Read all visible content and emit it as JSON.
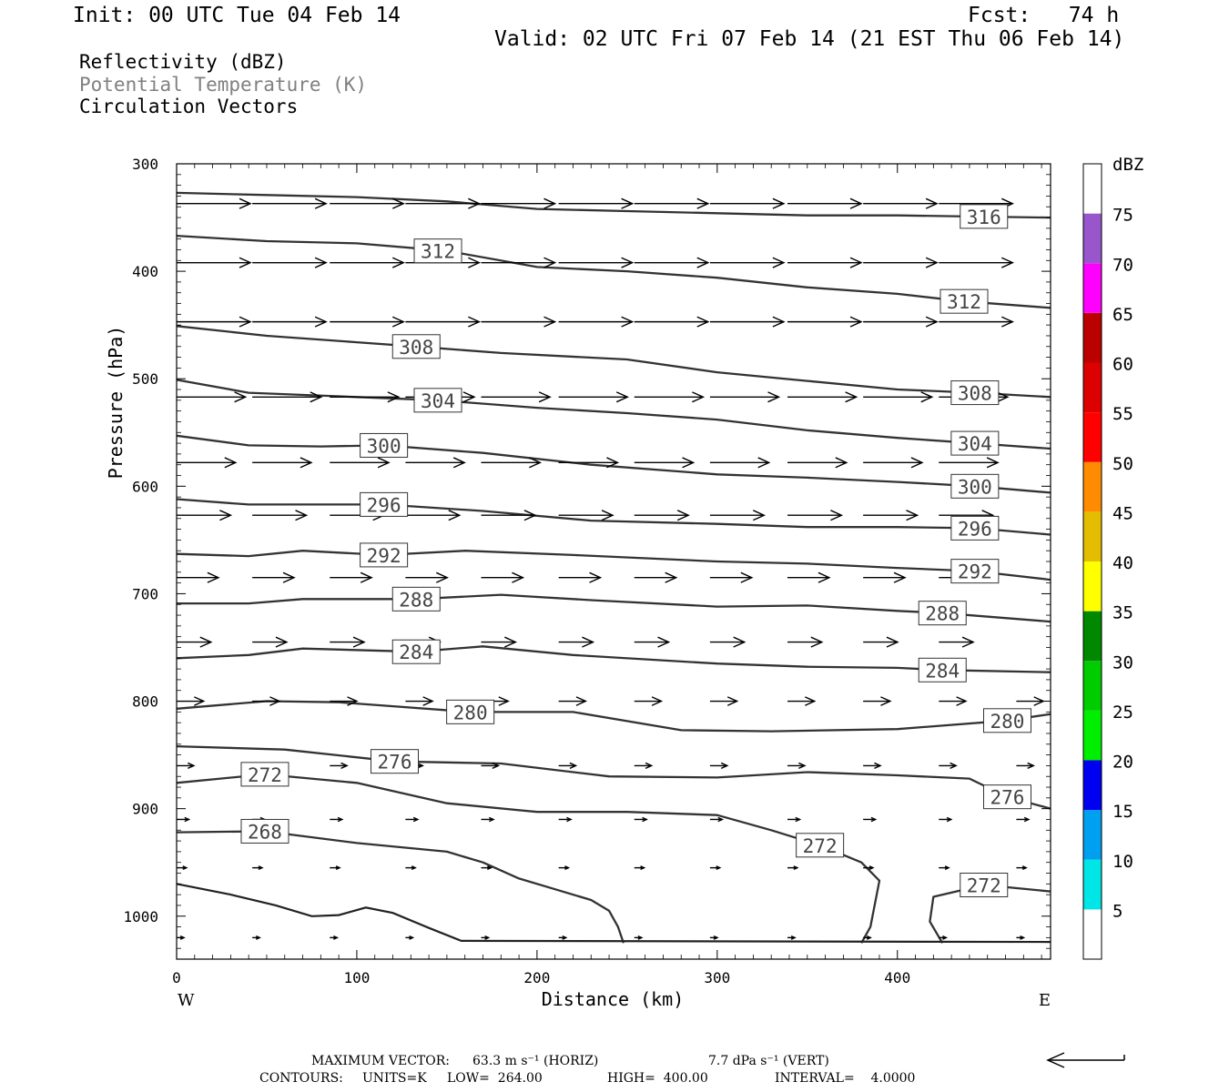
{
  "header": {
    "init": "Init: 00 UTC Tue 04 Feb 14",
    "fcst": "Fcst:   74 h",
    "valid": "Valid: 02 UTC Fri 07 Feb 14 (21 EST Thu 06 Feb 14)"
  },
  "legend": {
    "line1": "Reflectivity (dBZ)",
    "line2": "Potential Temperature (K)",
    "line3": "Circulation Vectors",
    "line2_color": "#808080"
  },
  "footer": {
    "max_vector_label": "MAXIMUM VECTOR:",
    "max_vector_horiz": "63.3 m s⁻¹ (HORIZ)",
    "max_vector_vert": "7.7 dPa s⁻¹ (VERT)",
    "contours_label": "CONTOURS:",
    "units": "UNITS=K",
    "low": "LOW=  264.00",
    "high": "HIGH=  400.00",
    "interval": "INTERVAL=    4.0000"
  },
  "chart_data": {
    "type": "line",
    "xlabel": "Distance (km)",
    "ylabel": "Pressure (hPa)",
    "xlim": [
      0,
      485
    ],
    "ylim": [
      1040,
      300
    ],
    "x_ticks": [
      0,
      100,
      200,
      300,
      400
    ],
    "y_ticks": [
      300,
      400,
      500,
      600,
      700,
      800,
      900,
      1000
    ],
    "x_left_end_label": "W",
    "x_right_end_label": "E",
    "colorbar": {
      "title": "dBZ",
      "levels": [
        5,
        10,
        15,
        20,
        25,
        30,
        35,
        40,
        45,
        50,
        55,
        60,
        65,
        70,
        75
      ],
      "colors": [
        "#ffffff",
        "#00e5e5",
        "#00a0f0",
        "#0000f0",
        "#00ee00",
        "#00cc00",
        "#008800",
        "#ffff00",
        "#e5bd00",
        "#ff8c00",
        "#ff0000",
        "#dd0000",
        "#bb0000",
        "#ff00ff",
        "#9955cc",
        "#ffffff"
      ]
    },
    "isentropes": [
      {
        "theta": "316",
        "labels": [
          [
            448,
            349
          ]
        ],
        "points": [
          [
            0,
            327
          ],
          [
            50,
            329
          ],
          [
            100,
            331
          ],
          [
            150,
            335
          ],
          [
            200,
            342
          ],
          [
            250,
            344
          ],
          [
            300,
            346
          ],
          [
            350,
            348
          ],
          [
            400,
            348
          ],
          [
            440,
            349
          ],
          [
            485,
            350
          ]
        ]
      },
      {
        "theta": "312",
        "labels": [
          [
            145,
            381
          ],
          [
            437,
            428
          ]
        ],
        "points": [
          [
            0,
            367
          ],
          [
            50,
            372
          ],
          [
            100,
            374
          ],
          [
            150,
            381
          ],
          [
            200,
            396
          ],
          [
            250,
            400
          ],
          [
            300,
            406
          ],
          [
            350,
            415
          ],
          [
            400,
            421
          ],
          [
            437,
            428
          ],
          [
            485,
            434
          ]
        ]
      },
      {
        "theta": "308",
        "labels": [
          [
            133,
            470
          ],
          [
            443,
            513
          ]
        ],
        "points": [
          [
            0,
            451
          ],
          [
            50,
            460
          ],
          [
            100,
            466
          ],
          [
            133,
            470
          ],
          [
            180,
            476
          ],
          [
            250,
            482
          ],
          [
            300,
            494
          ],
          [
            350,
            502
          ],
          [
            400,
            510
          ],
          [
            443,
            513
          ],
          [
            485,
            517
          ]
        ]
      },
      {
        "theta": "304",
        "labels": [
          [
            145,
            520
          ],
          [
            443,
            560
          ]
        ],
        "points": [
          [
            0,
            501
          ],
          [
            40,
            513
          ],
          [
            100,
            517
          ],
          [
            145,
            520
          ],
          [
            200,
            527
          ],
          [
            250,
            532
          ],
          [
            300,
            538
          ],
          [
            350,
            548
          ],
          [
            400,
            555
          ],
          [
            443,
            560
          ],
          [
            485,
            565
          ]
        ]
      },
      {
        "theta": "300",
        "labels": [
          [
            115,
            562
          ],
          [
            443,
            600
          ]
        ],
        "points": [
          [
            0,
            553
          ],
          [
            40,
            562
          ],
          [
            80,
            563
          ],
          [
            115,
            562
          ],
          [
            170,
            569
          ],
          [
            230,
            580
          ],
          [
            300,
            589
          ],
          [
            350,
            592
          ],
          [
            400,
            596
          ],
          [
            443,
            600
          ],
          [
            485,
            606
          ]
        ]
      },
      {
        "theta": "296",
        "labels": [
          [
            115,
            617
          ],
          [
            443,
            639
          ]
        ],
        "points": [
          [
            0,
            612
          ],
          [
            40,
            617
          ],
          [
            80,
            617
          ],
          [
            115,
            617
          ],
          [
            170,
            623
          ],
          [
            230,
            632
          ],
          [
            300,
            635
          ],
          [
            350,
            638
          ],
          [
            400,
            638
          ],
          [
            443,
            639
          ],
          [
            485,
            645
          ]
        ]
      },
      {
        "theta": "292",
        "labels": [
          [
            115,
            664
          ],
          [
            443,
            679
          ]
        ],
        "points": [
          [
            0,
            663
          ],
          [
            40,
            665
          ],
          [
            70,
            660
          ],
          [
            115,
            664
          ],
          [
            160,
            660
          ],
          [
            220,
            664
          ],
          [
            300,
            670
          ],
          [
            350,
            672
          ],
          [
            400,
            676
          ],
          [
            443,
            679
          ],
          [
            485,
            687
          ]
        ]
      },
      {
        "theta": "288",
        "labels": [
          [
            133,
            705
          ],
          [
            425,
            718
          ]
        ],
        "points": [
          [
            0,
            709
          ],
          [
            40,
            709
          ],
          [
            70,
            705
          ],
          [
            133,
            705
          ],
          [
            180,
            701
          ],
          [
            230,
            706
          ],
          [
            300,
            712
          ],
          [
            350,
            711
          ],
          [
            400,
            716
          ],
          [
            425,
            718
          ],
          [
            485,
            726
          ]
        ]
      },
      {
        "theta": "284",
        "labels": [
          [
            133,
            754
          ],
          [
            425,
            771
          ]
        ],
        "points": [
          [
            0,
            760
          ],
          [
            40,
            757
          ],
          [
            70,
            751
          ],
          [
            133,
            754
          ],
          [
            170,
            749
          ],
          [
            220,
            757
          ],
          [
            300,
            765
          ],
          [
            350,
            768
          ],
          [
            400,
            769
          ],
          [
            425,
            771
          ],
          [
            485,
            773
          ]
        ]
      },
      {
        "theta": "280",
        "labels": [
          [
            163,
            810
          ],
          [
            461,
            818
          ]
        ],
        "points": [
          [
            0,
            807
          ],
          [
            50,
            800
          ],
          [
            90,
            801
          ],
          [
            163,
            810
          ],
          [
            220,
            810
          ],
          [
            280,
            827
          ],
          [
            330,
            828
          ],
          [
            400,
            826
          ],
          [
            461,
            818
          ],
          [
            485,
            812
          ]
        ]
      },
      {
        "theta": "276",
        "labels": [
          [
            121,
            856
          ],
          [
            461,
            889
          ]
        ],
        "points": [
          [
            0,
            842
          ],
          [
            60,
            845
          ],
          [
            121,
            856
          ],
          [
            180,
            858
          ],
          [
            240,
            870
          ],
          [
            300,
            871
          ],
          [
            350,
            866
          ],
          [
            400,
            869
          ],
          [
            440,
            872
          ],
          [
            461,
            889
          ],
          [
            485,
            900
          ]
        ]
      },
      {
        "theta": "272",
        "labels": [
          [
            49,
            868
          ],
          [
            357,
            934
          ],
          [
            448,
            971
          ]
        ],
        "points": [
          [
            0,
            876
          ],
          [
            49,
            868
          ],
          [
            100,
            876
          ],
          [
            150,
            895
          ],
          [
            200,
            903
          ],
          [
            250,
            903
          ],
          [
            300,
            906
          ],
          [
            330,
            920
          ],
          [
            357,
            934
          ],
          [
            380,
            950
          ],
          [
            390,
            967
          ],
          [
            385,
            1010
          ],
          [
            380,
            1025
          ]
        ],
        "extra": [
          [
            [
              425,
              1025
            ],
            [
              418,
              1005
            ],
            [
              420,
              982
            ],
            [
              448,
              971
            ],
            [
              485,
              977
            ]
          ]
        ]
      },
      {
        "theta": "268",
        "labels": [
          [
            49,
            921
          ]
        ],
        "points": [
          [
            0,
            922
          ],
          [
            49,
            921
          ],
          [
            100,
            932
          ],
          [
            150,
            940
          ],
          [
            170,
            950
          ],
          [
            190,
            965
          ],
          [
            210,
            975
          ],
          [
            230,
            985
          ],
          [
            240,
            995
          ],
          [
            245,
            1010
          ],
          [
            248,
            1025
          ]
        ]
      }
    ],
    "ground": [
      [
        0,
        970
      ],
      [
        30,
        980
      ],
      [
        55,
        990
      ],
      [
        75,
        1000
      ],
      [
        90,
        999
      ],
      [
        105,
        992
      ],
      [
        120,
        997
      ],
      [
        140,
        1011
      ],
      [
        158,
        1023
      ],
      [
        485,
        1024
      ]
    ],
    "vectors": {
      "rows": [
        {
          "p": 337,
          "u": 30,
          "w": 0
        },
        {
          "p": 392,
          "u": 30,
          "w": 0
        },
        {
          "p": 447,
          "u": 30,
          "w": 0
        },
        {
          "p": 517,
          "u": 28,
          "w": 0
        },
        {
          "p": 578,
          "u": 24,
          "w": 0
        },
        {
          "p": 627,
          "u": 22,
          "w": 0
        },
        {
          "p": 685,
          "u": 17,
          "w": 0
        },
        {
          "p": 745,
          "u": 14,
          "w": 0
        },
        {
          "p": 800,
          "u": 11,
          "w": 0
        },
        {
          "p": 860,
          "u": 7,
          "w": 0
        },
        {
          "p": 910,
          "u": 5,
          "w": 0
        },
        {
          "p": 955,
          "u": 4,
          "w": 0
        },
        {
          "p": 1020,
          "u": 3,
          "w": 0
        }
      ],
      "x_positions": [
        0,
        42,
        85,
        127,
        169,
        212,
        254,
        296,
        339,
        381,
        423,
        466
      ]
    }
  }
}
